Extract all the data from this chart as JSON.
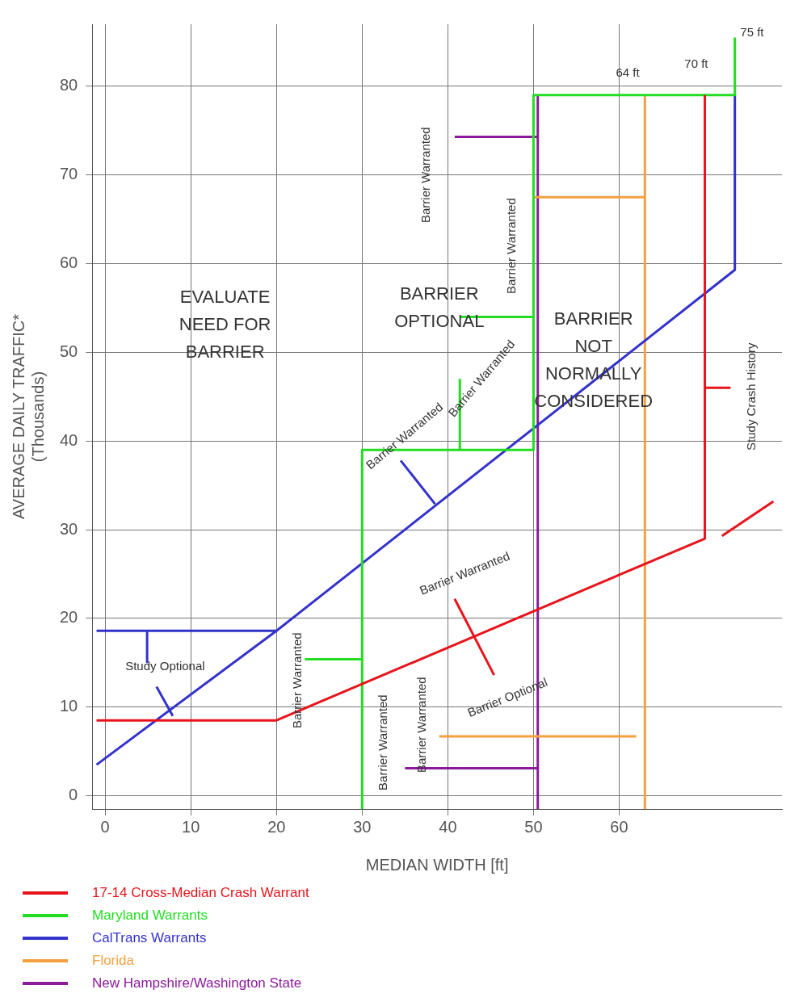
{
  "chart_data": {
    "type": "line",
    "xlabel": "MEDIAN WIDTH [ft]",
    "ylabel": "AVERAGE DAILY TRAFFIC*\n(Thousands)",
    "xlim": [
      -1.5,
      79
    ],
    "ylim": [
      -1.5,
      87
    ],
    "xticks": [
      0,
      10,
      20,
      30,
      40,
      50,
      60
    ],
    "yticks": [
      0,
      10,
      20,
      30,
      40,
      50,
      60,
      70,
      80
    ],
    "grid": true,
    "legend": "bottom left",
    "marker": "none",
    "line_style": "solid",
    "series": [
      {
        "name": "17-14 Cross-Median Crash Warrant",
        "color": "#e8141b",
        "x": [
          -1,
          20,
          70,
          70,
          null,
          70,
          73,
          null,
          40.8,
          45.4,
          null,
          72,
          78
        ],
        "values": [
          8.5,
          8.5,
          29,
          79,
          null,
          46,
          46,
          null,
          22.2,
          13.6,
          null,
          29.3,
          33.2
        ]
      },
      {
        "name": "Maryland Warrants",
        "color": "#22dd22",
        "x": [
          30,
          30,
          50,
          50,
          73.5,
          73.5,
          null,
          41.4,
          41.4,
          null,
          41.5,
          50,
          null,
          23.3,
          30
        ],
        "values": [
          -1.5,
          39,
          39,
          79,
          79,
          85.5,
          null,
          39,
          47,
          null,
          54,
          54,
          null,
          15.4,
          15.4
        ]
      },
      {
        "name": "CalTrans Warrants",
        "color": "#3333cc",
        "x": [
          -1,
          20,
          73.5,
          73.5,
          null,
          -1,
          20,
          null,
          4.9,
          4.9,
          null,
          7.9,
          6,
          null,
          38.5,
          34.5
        ],
        "values": [
          18.6,
          18.6,
          59.3,
          79,
          null,
          3.5,
          18.6,
          null,
          18.4,
          15.1,
          null,
          9,
          12.3,
          null,
          32.9,
          37.8
        ]
      },
      {
        "name": "Florida",
        "color": "#f5a040",
        "x": [
          63,
          63,
          null,
          50,
          63,
          null,
          39,
          62
        ],
        "values": [
          -1.5,
          79,
          null,
          67.5,
          67.5,
          null,
          6.7,
          6.7
        ]
      },
      {
        "name": "New Hampshire/Washington State",
        "color": "#8a1a9a",
        "x": [
          50.5,
          50.5,
          null,
          40.8,
          50.5,
          null,
          35,
          50.5
        ],
        "values": [
          -1.5,
          79,
          null,
          74.3,
          74.3,
          null,
          3.1,
          3.1
        ]
      }
    ],
    "annotations": [
      "75 ft",
      "70 ft",
      "64 ft",
      "EVALUATE\nNEED FOR\nBARRIER",
      "BARRIER\nOPTIONAL",
      "BARRIER\nNOT\nNORMALLY\nCONSIDERED",
      "Barrier Warranted",
      "Barrier Warranted",
      "Barrier Warranted",
      "Barrier Warranted",
      "Barrier Warranted",
      "Barrier Warranted",
      "Barrier Warranted",
      "Barrier Warranted",
      "Study Optional",
      "Barrier Optional",
      "Study Crash History"
    ]
  }
}
